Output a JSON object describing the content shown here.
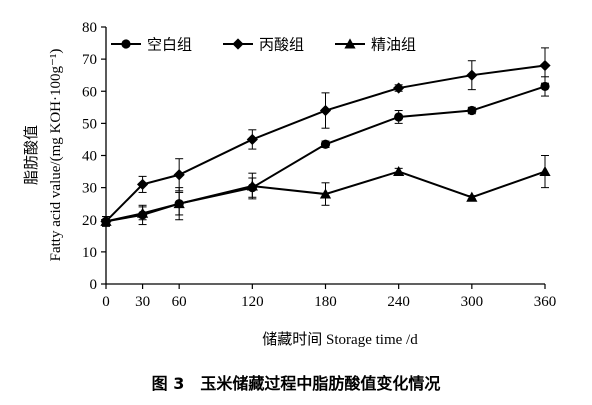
{
  "figure": {
    "caption": "图 3　玉米储藏过程中脂肪酸值变化情况"
  },
  "chart_data": {
    "type": "line",
    "x": [
      0,
      30,
      60,
      120,
      180,
      240,
      300,
      360
    ],
    "xlabel": "储藏时间  Storage time /d",
    "ylabel": "脂肪酸值",
    "ylabel_sub": "Fatty acid value/(mg KOH·100g⁻¹)",
    "ylim": [
      0,
      80
    ],
    "yticks": [
      0,
      10,
      20,
      30,
      40,
      50,
      60,
      70,
      80
    ],
    "xticks": [
      0,
      30,
      60,
      120,
      180,
      240,
      300,
      360
    ],
    "legend_position": "top-left",
    "grid": false,
    "series": [
      {
        "name": "空白组",
        "marker": "circle",
        "values": [
          19.5,
          21.5,
          25,
          30,
          43.5,
          52,
          54,
          61.5
        ],
        "errors": [
          1.5,
          3,
          5,
          3,
          1,
          2,
          1,
          3
        ]
      },
      {
        "name": "丙酸组",
        "marker": "diamond",
        "values": [
          19.5,
          31,
          34,
          45,
          54,
          61,
          65,
          68
        ],
        "errors": [
          1.5,
          2.5,
          5,
          3,
          5.5,
          1,
          4.5,
          5.5
        ]
      },
      {
        "name": "精油组",
        "marker": "triangle",
        "values": [
          19.5,
          22,
          25,
          30.5,
          28,
          35,
          27,
          35
        ],
        "errors": [
          1.5,
          2,
          3.5,
          4,
          3.5,
          1,
          0.5,
          5
        ]
      }
    ]
  }
}
